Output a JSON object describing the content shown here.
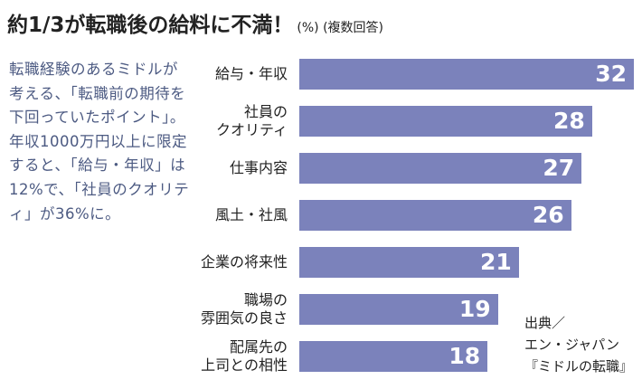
{
  "title": "約1/3が転職後の給料に不満！",
  "title_sub": "(%) (複数回答)",
  "note": "転職経験のあるミドルが考える、「転職前の期待を下回っていたポイント」。年収1000万円以上に限定すると、「給与・年収」は12%で、「社員のクオリティ」が36%に。",
  "source": [
    "出典／",
    "エン・ジャパン",
    "『ミドルの転職』"
  ],
  "chart_data": {
    "type": "bar",
    "orientation": "horizontal",
    "title": "約1/3が転職後の給料に不満！",
    "unit": "%",
    "categories": [
      [
        "給与・年収"
      ],
      [
        "社員の",
        "クオリティ"
      ],
      [
        "仕事内容"
      ],
      [
        "風土・社風"
      ],
      [
        "企業の将来性"
      ],
      [
        "職場の",
        "雰囲気の良さ"
      ],
      [
        "配属先の",
        "上司との相性"
      ]
    ],
    "values": [
      32,
      28,
      27,
      26,
      21,
      19,
      18
    ],
    "color": "#7b82bb",
    "grid": false
  }
}
